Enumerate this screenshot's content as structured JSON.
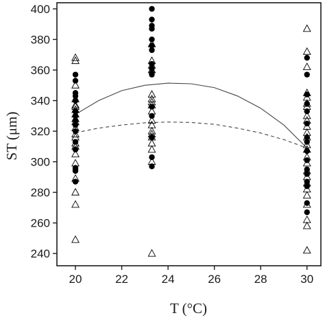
{
  "chart_data": {
    "type": "scatter",
    "xlabel": "T (°C)",
    "ylabel": "ST (μm)",
    "xlim": [
      19.2,
      30.6
    ],
    "ylim": [
      232,
      404
    ],
    "x_ticks": [
      20,
      22,
      24,
      26,
      28,
      30
    ],
    "y_ticks": [
      240,
      260,
      280,
      300,
      320,
      340,
      360,
      380,
      400
    ],
    "grid": false,
    "legend": "none",
    "colors": {
      "filled": "#000000",
      "open": "#000000",
      "curve": "#444444"
    },
    "series": [
      {
        "marker": "filled-circle",
        "points": [
          [
            20,
            357
          ],
          [
            20,
            353
          ],
          [
            20,
            345
          ],
          [
            20,
            343
          ],
          [
            20,
            340
          ],
          [
            20,
            333
          ],
          [
            20,
            330
          ],
          [
            20,
            327
          ],
          [
            20,
            324
          ],
          [
            20,
            320
          ],
          [
            20,
            313
          ],
          [
            20,
            308
          ],
          [
            20,
            296
          ],
          [
            20,
            295
          ],
          [
            20,
            294
          ],
          [
            20,
            287
          ],
          [
            23.3,
            400
          ],
          [
            23.3,
            393
          ],
          [
            23.3,
            389
          ],
          [
            23.3,
            387
          ],
          [
            23.3,
            380
          ],
          [
            23.3,
            376
          ],
          [
            23.3,
            373
          ],
          [
            23.3,
            364
          ],
          [
            23.3,
            361
          ],
          [
            23.3,
            358
          ],
          [
            23.3,
            357
          ],
          [
            23.3,
            336
          ],
          [
            23.3,
            330
          ],
          [
            23.3,
            316
          ],
          [
            23.3,
            303
          ],
          [
            23.3,
            297
          ],
          [
            30,
            368
          ],
          [
            30,
            357
          ],
          [
            30,
            344
          ],
          [
            30,
            338
          ],
          [
            30,
            333
          ],
          [
            30,
            325
          ],
          [
            30,
            316
          ],
          [
            30,
            313
          ],
          [
            30,
            307
          ],
          [
            30,
            301
          ],
          [
            30,
            295
          ],
          [
            30,
            292
          ],
          [
            30,
            287
          ],
          [
            30,
            284
          ],
          [
            30,
            273
          ],
          [
            30,
            267
          ]
        ]
      },
      {
        "marker": "open-triangle",
        "points": [
          [
            20,
            368
          ],
          [
            20,
            366
          ],
          [
            20,
            350
          ],
          [
            20,
            341
          ],
          [
            20,
            337
          ],
          [
            20,
            336
          ],
          [
            20,
            334
          ],
          [
            20,
            331
          ],
          [
            20,
            328
          ],
          [
            20,
            326
          ],
          [
            20,
            322
          ],
          [
            20,
            318
          ],
          [
            20,
            316
          ],
          [
            20,
            312
          ],
          [
            20,
            310
          ],
          [
            20,
            305
          ],
          [
            20,
            299
          ],
          [
            20,
            289
          ],
          [
            20,
            280
          ],
          [
            20,
            272
          ],
          [
            20,
            249
          ],
          [
            23.3,
            377
          ],
          [
            23.3,
            366
          ],
          [
            23.3,
            363
          ],
          [
            23.3,
            360
          ],
          [
            23.3,
            344
          ],
          [
            23.3,
            341
          ],
          [
            23.3,
            339
          ],
          [
            23.3,
            337
          ],
          [
            23.3,
            333
          ],
          [
            23.3,
            327
          ],
          [
            23.3,
            324
          ],
          [
            23.3,
            320
          ],
          [
            23.3,
            318
          ],
          [
            23.3,
            316
          ],
          [
            23.3,
            312
          ],
          [
            23.3,
            308
          ],
          [
            23.3,
            300
          ],
          [
            23.3,
            240
          ],
          [
            30,
            387
          ],
          [
            30,
            372
          ],
          [
            30,
            362
          ],
          [
            30,
            345
          ],
          [
            30,
            342
          ],
          [
            30,
            338
          ],
          [
            30,
            336
          ],
          [
            30,
            330
          ],
          [
            30,
            327
          ],
          [
            30,
            323
          ],
          [
            30,
            319
          ],
          [
            30,
            316
          ],
          [
            30,
            311
          ],
          [
            30,
            308
          ],
          [
            30,
            303
          ],
          [
            30,
            299
          ],
          [
            30,
            294
          ],
          [
            30,
            290
          ],
          [
            30,
            286
          ],
          [
            30,
            282
          ],
          [
            30,
            278
          ],
          [
            30,
            272
          ],
          [
            30,
            262
          ],
          [
            30,
            258
          ],
          [
            30,
            242
          ]
        ]
      }
    ],
    "fits": [
      {
        "style": "solid",
        "points": [
          [
            20,
            331
          ],
          [
            21,
            340
          ],
          [
            22,
            346.5
          ],
          [
            23,
            350
          ],
          [
            24,
            351.4
          ],
          [
            25,
            351
          ],
          [
            26,
            348.5
          ],
          [
            27,
            343
          ],
          [
            28,
            335
          ],
          [
            29,
            324
          ],
          [
            30,
            309
          ]
        ]
      },
      {
        "style": "dashed",
        "points": [
          [
            20,
            319
          ],
          [
            21,
            322
          ],
          [
            22,
            324
          ],
          [
            23,
            325.5
          ],
          [
            24,
            326
          ],
          [
            25,
            325.7
          ],
          [
            26,
            324.5
          ],
          [
            27,
            322
          ],
          [
            28,
            318.8
          ],
          [
            29,
            314.5
          ],
          [
            30,
            309
          ]
        ]
      }
    ]
  }
}
